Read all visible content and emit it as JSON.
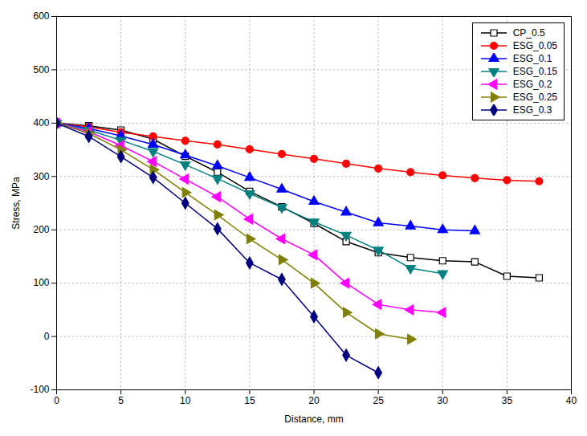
{
  "chart_data": {
    "type": "line",
    "xlabel": "Distance, mm",
    "ylabel": "Stress, MPa",
    "xlim": [
      0,
      40
    ],
    "ylim": [
      -100,
      600
    ],
    "xticks": [
      0,
      5,
      10,
      15,
      20,
      25,
      30,
      35,
      40
    ],
    "yticks": [
      -100,
      0,
      100,
      200,
      300,
      400,
      500,
      600
    ],
    "grid": true,
    "legend": "upper right",
    "series": [
      {
        "name": "CP_0.5",
        "color": "#000000",
        "marker": "square-open",
        "line_style": "solid",
        "x": [
          0,
          2.5,
          5,
          7.5,
          10,
          12.5,
          15,
          17.5,
          20,
          22.5,
          25,
          27.5,
          30,
          32.5,
          35,
          37.5
        ],
        "values": [
          400,
          395,
          387,
          370,
          338,
          308,
          272,
          243,
          212,
          178,
          157,
          148,
          142,
          140,
          113,
          110
        ]
      },
      {
        "name": "ESG_0.05",
        "color": "#ff0000",
        "marker": "circle",
        "line_style": "solid",
        "x": [
          0,
          2.5,
          5,
          7.5,
          10,
          12.5,
          15,
          17.5,
          20,
          22.5,
          25,
          27.5,
          30,
          32.5,
          35,
          37.5
        ],
        "values": [
          400,
          393,
          383,
          375,
          367,
          360,
          351,
          342,
          333,
          324,
          315,
          308,
          302,
          297,
          293,
          291
        ]
      },
      {
        "name": "ESG_0.1",
        "color": "#0000ff",
        "marker": "triangle-up",
        "line_style": "solid",
        "x": [
          0,
          2.5,
          5,
          7.5,
          10,
          12.5,
          15,
          17.5,
          20,
          22.5,
          25,
          27.5,
          30,
          32.5
        ],
        "values": [
          400,
          390,
          376,
          360,
          340,
          320,
          298,
          276,
          253,
          233,
          213,
          207,
          200,
          198
        ]
      },
      {
        "name": "ESG_0.15",
        "color": "#008080",
        "marker": "triangle-down",
        "line_style": "solid",
        "x": [
          0,
          2.5,
          5,
          7.5,
          10,
          12.5,
          15,
          17.5,
          20,
          22.5,
          25,
          27.5,
          30
        ],
        "values": [
          400,
          387,
          368,
          347,
          322,
          296,
          268,
          242,
          215,
          190,
          162,
          128,
          118
        ]
      },
      {
        "name": "ESG_0.2",
        "color": "#ff00ff",
        "marker": "triangle-left",
        "line_style": "solid",
        "x": [
          0,
          2.5,
          5,
          7.5,
          10,
          12.5,
          15,
          17.5,
          20,
          22.5,
          25,
          27.5,
          30
        ],
        "values": [
          400,
          384,
          358,
          328,
          295,
          262,
          220,
          183,
          153,
          100,
          60,
          50,
          45
        ]
      },
      {
        "name": "ESG_0.25",
        "color": "#808000",
        "marker": "triangle-right",
        "line_style": "solid",
        "x": [
          0,
          2.5,
          5,
          7.5,
          10,
          12.5,
          15,
          17.5,
          20,
          22.5,
          25,
          27.5
        ],
        "values": [
          400,
          381,
          350,
          313,
          270,
          228,
          183,
          144,
          100,
          45,
          5,
          -5
        ]
      },
      {
        "name": "ESG_0.3",
        "color": "#000080",
        "marker": "diamond",
        "line_style": "solid",
        "x": [
          0,
          2.5,
          5,
          7.5,
          10,
          12.5,
          15,
          17.5,
          20,
          22.5,
          25
        ],
        "values": [
          400,
          375,
          337,
          298,
          250,
          202,
          138,
          107,
          37,
          -35,
          -68
        ]
      }
    ]
  }
}
